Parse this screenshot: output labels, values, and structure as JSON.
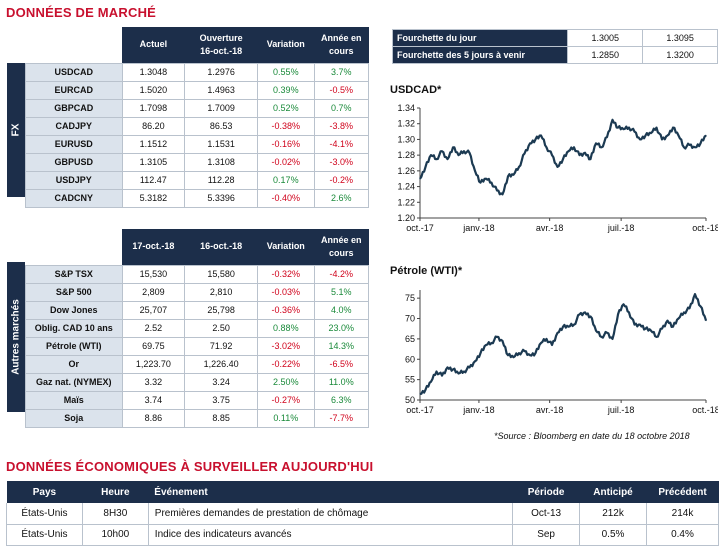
{
  "market_title": "DONNÉES DE MARCHÉ",
  "fx": {
    "side_label": "FX",
    "headers": [
      "Actuel",
      "Ouverture\n16-oct.-18",
      "Variation",
      "Année en\ncours"
    ],
    "rows": [
      {
        "name": "USDCAD",
        "actuel": "1.3048",
        "ouverture": "1.2976",
        "variation": "0.55%",
        "annee": "3.7%",
        "vpos": true,
        "apos": true
      },
      {
        "name": "EURCAD",
        "actuel": "1.5020",
        "ouverture": "1.4963",
        "variation": "0.39%",
        "annee": "-0.5%",
        "vpos": true,
        "apos": false
      },
      {
        "name": "GBPCAD",
        "actuel": "1.7098",
        "ouverture": "1.7009",
        "variation": "0.52%",
        "annee": "0.7%",
        "vpos": true,
        "apos": true
      },
      {
        "name": "CADJPY",
        "actuel": "86.20",
        "ouverture": "86.53",
        "variation": "-0.38%",
        "annee": "-3.8%",
        "vpos": false,
        "apos": false
      },
      {
        "name": "EURUSD",
        "actuel": "1.1512",
        "ouverture": "1.1531",
        "variation": "-0.16%",
        "annee": "-4.1%",
        "vpos": false,
        "apos": false
      },
      {
        "name": "GBPUSD",
        "actuel": "1.3105",
        "ouverture": "1.3108",
        "variation": "-0.02%",
        "annee": "-3.0%",
        "vpos": false,
        "apos": false
      },
      {
        "name": "USDJPY",
        "actuel": "112.47",
        "ouverture": "112.28",
        "variation": "0.17%",
        "annee": "-0.2%",
        "vpos": true,
        "apos": false
      },
      {
        "name": "CADCNY",
        "actuel": "5.3182",
        "ouverture": "5.3396",
        "variation": "-0.40%",
        "annee": "2.6%",
        "vpos": false,
        "apos": true
      }
    ]
  },
  "other": {
    "side_label": "Autres marchés",
    "headers": [
      "17-oct.-18",
      "16-oct.-18",
      "Variation",
      "Année en\ncours"
    ],
    "rows": [
      {
        "name": "S&P TSX",
        "c1": "15,530",
        "c2": "15,580",
        "variation": "-0.32%",
        "annee": "-4.2%",
        "vpos": false,
        "apos": false
      },
      {
        "name": "S&P 500",
        "c1": "2,809",
        "c2": "2,810",
        "variation": "-0.03%",
        "annee": "5.1%",
        "vpos": false,
        "apos": true
      },
      {
        "name": "Dow Jones",
        "c1": "25,707",
        "c2": "25,798",
        "variation": "-0.36%",
        "annee": "4.0%",
        "vpos": false,
        "apos": true
      },
      {
        "name": "Oblig. CAD 10 ans",
        "c1": "2.52",
        "c2": "2.50",
        "variation": "0.88%",
        "annee": "23.0%",
        "vpos": true,
        "apos": true
      },
      {
        "name": "Pétrole (WTI)",
        "c1": "69.75",
        "c2": "71.92",
        "variation": "-3.02%",
        "annee": "14.3%",
        "vpos": false,
        "apos": true
      },
      {
        "name": "Or",
        "c1": "1,223.70",
        "c2": "1,226.40",
        "variation": "-0.22%",
        "annee": "-6.5%",
        "vpos": false,
        "apos": false
      },
      {
        "name": "Gaz nat. (NYMEX)",
        "c1": "3.32",
        "c2": "3.24",
        "variation": "2.50%",
        "annee": "11.0%",
        "vpos": true,
        "apos": true
      },
      {
        "name": "Maïs",
        "c1": "3.74",
        "c2": "3.75",
        "variation": "-0.27%",
        "annee": "6.3%",
        "vpos": false,
        "apos": true
      },
      {
        "name": "Soja",
        "c1": "8.86",
        "c2": "8.85",
        "variation": "0.11%",
        "annee": "-7.7%",
        "vpos": true,
        "apos": false
      }
    ]
  },
  "range": {
    "rows": [
      {
        "label": "Fourchette du jour",
        "low": "1.3005",
        "high": "1.3095"
      },
      {
        "label": "Fourchette des 5 jours à venir",
        "low": "1.2850",
        "high": "1.3200"
      }
    ]
  },
  "source_note": "*Source : Bloomberg en date du  18 octobre 2018",
  "colors": {
    "navy": "#1c2e4a",
    "red_title": "#c8102e",
    "positive": "#1a8a3a",
    "negative": "#d0021b",
    "line": "#1c3a52"
  },
  "chart_data": [
    {
      "type": "line",
      "title": "USDCAD*",
      "xlabel": "",
      "ylabel": "",
      "x_ticks": [
        "oct.-17",
        "janv.-18",
        "avr.-18",
        "juil.-18",
        "oct.-18"
      ],
      "y_ticks": [
        1.2,
        1.22,
        1.24,
        1.26,
        1.28,
        1.3,
        1.32,
        1.34
      ],
      "ylim": [
        1.2,
        1.34
      ],
      "x": [
        "2017-10-18",
        "2017-10-25",
        "2017-11-01",
        "2017-11-08",
        "2017-11-15",
        "2017-11-22",
        "2017-11-29",
        "2017-12-06",
        "2017-12-13",
        "2017-12-20",
        "2017-12-27",
        "2018-01-03",
        "2018-01-10",
        "2018-01-17",
        "2018-01-24",
        "2018-01-31",
        "2018-02-07",
        "2018-02-14",
        "2018-02-21",
        "2018-02-28",
        "2018-03-07",
        "2018-03-14",
        "2018-03-21",
        "2018-03-28",
        "2018-04-04",
        "2018-04-11",
        "2018-04-18",
        "2018-04-25",
        "2018-05-02",
        "2018-05-09",
        "2018-05-16",
        "2018-05-23",
        "2018-05-30",
        "2018-06-06",
        "2018-06-13",
        "2018-06-20",
        "2018-06-27",
        "2018-07-04",
        "2018-07-11",
        "2018-07-18",
        "2018-07-25",
        "2018-08-01",
        "2018-08-08",
        "2018-08-15",
        "2018-08-22",
        "2018-08-29",
        "2018-09-05",
        "2018-09-12",
        "2018-09-19",
        "2018-09-26",
        "2018-10-03",
        "2018-10-10",
        "2018-10-17"
      ],
      "values": [
        1.25,
        1.265,
        1.28,
        1.275,
        1.285,
        1.275,
        1.29,
        1.28,
        1.285,
        1.283,
        1.26,
        1.245,
        1.25,
        1.245,
        1.235,
        1.23,
        1.253,
        1.255,
        1.265,
        1.282,
        1.295,
        1.3,
        1.305,
        1.29,
        1.28,
        1.265,
        1.275,
        1.285,
        1.29,
        1.28,
        1.283,
        1.275,
        1.295,
        1.29,
        1.303,
        1.325,
        1.315,
        1.313,
        1.315,
        1.31,
        1.3,
        1.305,
        1.308,
        1.315,
        1.3,
        1.305,
        1.315,
        1.305,
        1.29,
        1.293,
        1.29,
        1.295,
        1.305
      ]
    },
    {
      "type": "line",
      "title": "Pétrole (WTI)*",
      "xlabel": "",
      "ylabel": "",
      "x_ticks": [
        "oct.-17",
        "janv.-18",
        "avr.-18",
        "juil.-18",
        "oct.-18"
      ],
      "y_ticks": [
        50,
        55,
        60,
        65,
        70,
        75
      ],
      "ylim": [
        50,
        77
      ],
      "x": [
        "2017-10-18",
        "2017-10-25",
        "2017-11-01",
        "2017-11-08",
        "2017-11-15",
        "2017-11-22",
        "2017-11-29",
        "2017-12-06",
        "2017-12-13",
        "2017-12-20",
        "2017-12-27",
        "2018-01-03",
        "2018-01-10",
        "2018-01-17",
        "2018-01-24",
        "2018-01-31",
        "2018-02-07",
        "2018-02-14",
        "2018-02-21",
        "2018-02-28",
        "2018-03-07",
        "2018-03-14",
        "2018-03-21",
        "2018-03-28",
        "2018-04-04",
        "2018-04-11",
        "2018-04-18",
        "2018-04-25",
        "2018-05-02",
        "2018-05-09",
        "2018-05-16",
        "2018-05-23",
        "2018-05-30",
        "2018-06-06",
        "2018-06-13",
        "2018-06-20",
        "2018-06-27",
        "2018-07-04",
        "2018-07-11",
        "2018-07-18",
        "2018-07-25",
        "2018-08-01",
        "2018-08-08",
        "2018-08-15",
        "2018-08-22",
        "2018-08-29",
        "2018-09-05",
        "2018-09-12",
        "2018-09-19",
        "2018-09-26",
        "2018-10-03",
        "2018-10-10",
        "2018-10-17"
      ],
      "values": [
        51.5,
        52.5,
        54.5,
        57.0,
        56.0,
        58.0,
        57.5,
        56.5,
        57.0,
        58.0,
        59.5,
        61.5,
        63.5,
        64.0,
        65.5,
        64.5,
        61.0,
        60.5,
        61.5,
        62.0,
        61.0,
        61.5,
        64.0,
        65.0,
        63.5,
        66.5,
        68.0,
        68.0,
        68.5,
        71.0,
        71.5,
        70.5,
        67.0,
        65.5,
        66.5,
        65.0,
        71.0,
        73.5,
        71.5,
        68.5,
        68.5,
        67.5,
        67.0,
        65.5,
        67.5,
        69.5,
        68.0,
        70.0,
        71.5,
        72.5,
        76.0,
        73.0,
        69.5
      ]
    }
  ],
  "eco": {
    "title": "DONNÉES ÉCONOMIQUES À SURVEILLER AUJOURD'HUI",
    "headers": [
      "Pays",
      "Heure",
      "Événement",
      "Période",
      "Anticipé",
      "Précédent"
    ],
    "rows": [
      {
        "pays": "États-Unis",
        "heure": "8H30",
        "evenement": "Premières demandes de prestation de chômage",
        "periode": "Oct-13",
        "anticipe": "212k",
        "precedent": "214k"
      },
      {
        "pays": "États-Unis",
        "heure": "10h00",
        "evenement": "Indice des indicateurs avancés",
        "periode": "Sep",
        "anticipe": "0.5%",
        "precedent": "0.4%"
      }
    ]
  }
}
